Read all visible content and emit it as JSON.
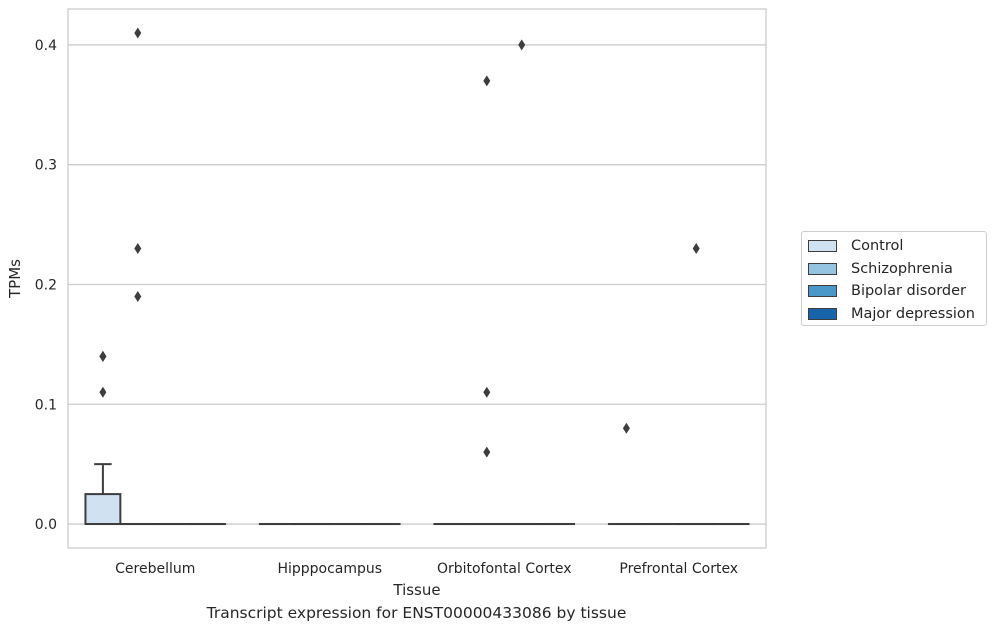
{
  "chart_data": {
    "type": "box",
    "caption": "Transcript expression for ENST00000433086 by tissue",
    "xlabel": "Tissue",
    "ylabel": "TPMs",
    "ylim": [
      -0.02,
      0.43
    ],
    "yticks": [
      0.0,
      0.1,
      0.2,
      0.3,
      0.4
    ],
    "ytick_labels": [
      "0.0",
      "0.1",
      "0.2",
      "0.3",
      "0.4"
    ],
    "grid": "horizontal",
    "legend_position": "outside-right",
    "categories": [
      "Cerebellum",
      "Hipppocampus",
      "Orbitofontal Cortex",
      "Prefrontal Cortex"
    ],
    "series": [
      {
        "name": "Control",
        "color": "#d0e1f2",
        "boxes": [
          {
            "q1": 0.0,
            "median": 0.0,
            "q3": 0.025,
            "whisker_low": 0.0,
            "whisker_high": 0.05,
            "outliers": [
              0.11,
              0.14,
              0.14
            ]
          },
          {
            "q1": 0.0,
            "median": 0.0,
            "q3": 0.0,
            "whisker_low": 0.0,
            "whisker_high": 0.0,
            "outliers": []
          },
          {
            "q1": 0.0,
            "median": 0.0,
            "q3": 0.0,
            "whisker_low": 0.0,
            "whisker_high": 0.0,
            "outliers": []
          },
          {
            "q1": 0.0,
            "median": 0.0,
            "q3": 0.0,
            "whisker_low": 0.0,
            "whisker_high": 0.0,
            "outliers": [
              0.08
            ]
          }
        ]
      },
      {
        "name": "Schizophrenia",
        "color": "#94c4df",
        "boxes": [
          {
            "q1": 0.0,
            "median": 0.0,
            "q3": 0.0,
            "whisker_low": 0.0,
            "whisker_high": 0.0,
            "outliers": [
              0.19,
              0.23,
              0.41
            ]
          },
          {
            "q1": 0.0,
            "median": 0.0,
            "q3": 0.0,
            "whisker_low": 0.0,
            "whisker_high": 0.0,
            "outliers": []
          },
          {
            "q1": 0.0,
            "median": 0.0,
            "q3": 0.0,
            "whisker_low": 0.0,
            "whisker_high": 0.0,
            "outliers": [
              0.06,
              0.11,
              0.37
            ]
          },
          {
            "q1": 0.0,
            "median": 0.0,
            "q3": 0.0,
            "whisker_low": 0.0,
            "whisker_high": 0.0,
            "outliers": []
          }
        ]
      },
      {
        "name": "Bipolar disorder",
        "color": "#4a98c9",
        "boxes": [
          {
            "q1": 0.0,
            "median": 0.0,
            "q3": 0.0,
            "whisker_low": 0.0,
            "whisker_high": 0.0,
            "outliers": []
          },
          {
            "q1": 0.0,
            "median": 0.0,
            "q3": 0.0,
            "whisker_low": 0.0,
            "whisker_high": 0.0,
            "outliers": []
          },
          {
            "q1": 0.0,
            "median": 0.0,
            "q3": 0.0,
            "whisker_low": 0.0,
            "whisker_high": 0.0,
            "outliers": [
              0.4
            ]
          },
          {
            "q1": 0.0,
            "median": 0.0,
            "q3": 0.0,
            "whisker_low": 0.0,
            "whisker_high": 0.0,
            "outliers": [
              0.23
            ]
          }
        ]
      },
      {
        "name": "Major depression",
        "color": "#1764ab",
        "boxes": [
          {
            "q1": 0.0,
            "median": 0.0,
            "q3": 0.0,
            "whisker_low": 0.0,
            "whisker_high": 0.0,
            "outliers": []
          },
          {
            "q1": 0.0,
            "median": 0.0,
            "q3": 0.0,
            "whisker_low": 0.0,
            "whisker_high": 0.0,
            "outliers": []
          },
          {
            "q1": 0.0,
            "median": 0.0,
            "q3": 0.0,
            "whisker_low": 0.0,
            "whisker_high": 0.0,
            "outliers": []
          },
          {
            "q1": 0.0,
            "median": 0.0,
            "q3": 0.0,
            "whisker_low": 0.0,
            "whisker_high": 0.0,
            "outliers": []
          }
        ]
      }
    ]
  }
}
